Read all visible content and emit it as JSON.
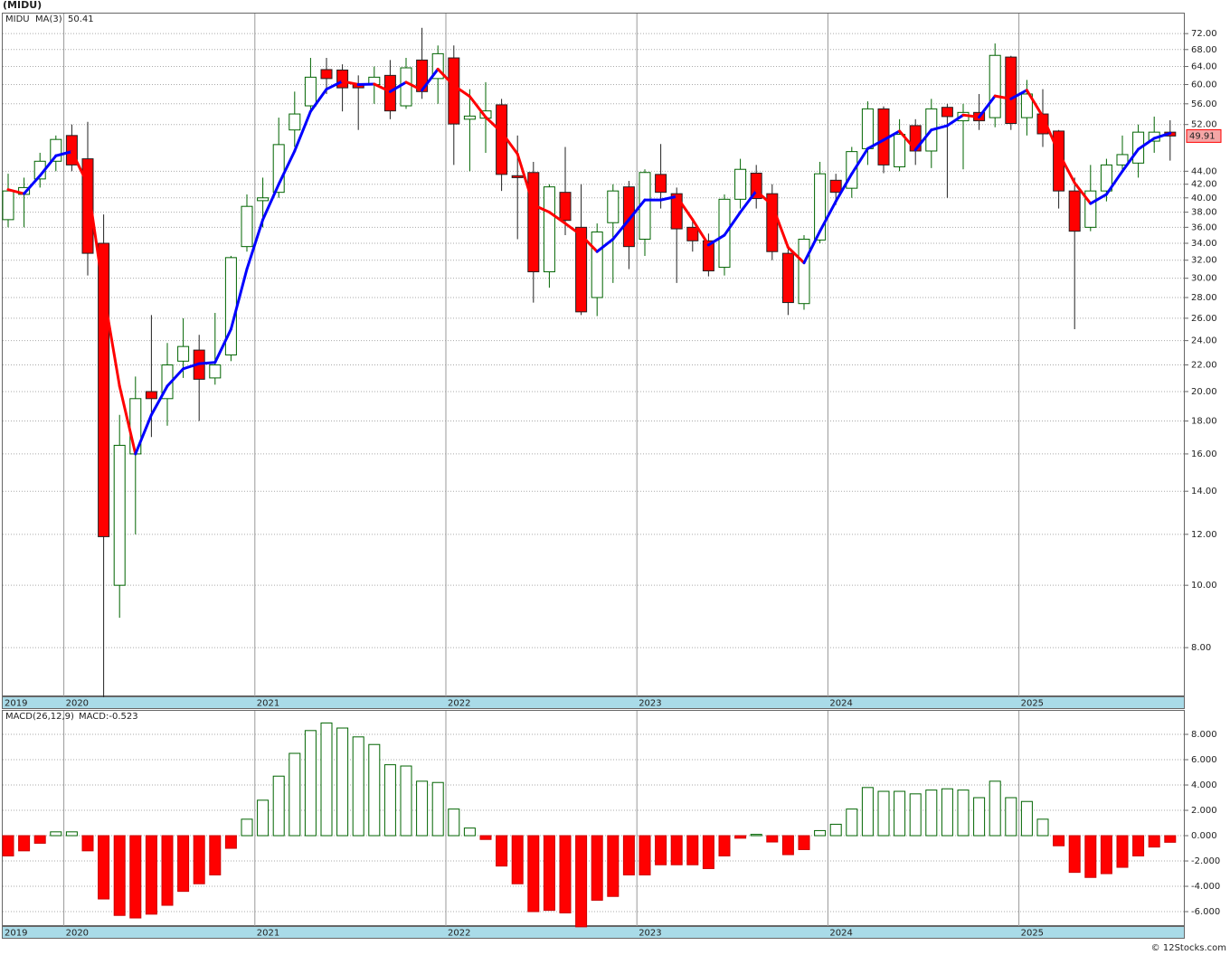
{
  "chart_data": [
    {
      "type": "candlestick",
      "title": "(MIDU)",
      "log_scale": true,
      "grid": true,
      "categories": [
        "2019",
        null,
        null,
        null,
        "2020",
        null,
        null,
        null,
        null,
        null,
        null,
        null,
        null,
        null,
        null,
        null,
        "2021",
        null,
        null,
        null,
        null,
        null,
        null,
        null,
        null,
        null,
        null,
        null,
        "2022",
        null,
        null,
        null,
        null,
        null,
        null,
        null,
        null,
        null,
        null,
        null,
        "2023",
        null,
        null,
        null,
        null,
        null,
        null,
        null,
        null,
        null,
        null,
        null,
        "2024",
        null,
        null,
        null,
        null,
        null,
        null,
        null,
        null,
        null,
        null,
        null,
        "2025",
        null,
        null,
        null,
        null,
        null,
        null,
        null,
        null,
        null
      ],
      "ylim": [
        6.72,
        77.6
      ],
      "yticks": [
        {
          "value": 72,
          "label": "72.00"
        },
        {
          "value": 68,
          "label": "68.00"
        },
        {
          "value": 64,
          "label": "64.00"
        },
        {
          "value": 60,
          "label": "60.00"
        },
        {
          "value": 56,
          "label": "56.00"
        },
        {
          "value": 52,
          "label": "52.00"
        },
        {
          "value": 44,
          "label": "44.00"
        },
        {
          "value": 42,
          "label": "42.00"
        },
        {
          "value": 40,
          "label": "40.00"
        },
        {
          "value": 38,
          "label": "38.00"
        },
        {
          "value": 36,
          "label": "36.00"
        },
        {
          "value": 34,
          "label": "34.00"
        },
        {
          "value": 32,
          "label": "32.00"
        },
        {
          "value": 30,
          "label": "30.00"
        },
        {
          "value": 28,
          "label": "28.00"
        },
        {
          "value": 26,
          "label": "26.00"
        },
        {
          "value": 24,
          "label": "24.00"
        },
        {
          "value": 22,
          "label": "22.00"
        },
        {
          "value": 20,
          "label": "20.00"
        },
        {
          "value": 18,
          "label": "18.00"
        },
        {
          "value": 16,
          "label": "16.00"
        },
        {
          "value": 14,
          "label": "14.00"
        },
        {
          "value": 12,
          "label": "12.00"
        },
        {
          "value": 10,
          "label": "10.00"
        },
        {
          "value": 8,
          "label": "8.00"
        }
      ],
      "series": [
        {
          "name": "MIDU",
          "color": "#008000",
          "up_color": "#ffffff",
          "up_edge": "#006400",
          "down_color": "#ff0000",
          "down_edge": "#222222",
          "tag_color": "#f4a6a6",
          "open": [
            37,
            40.5,
            42.8,
            45.6,
            50,
            46,
            34,
            10,
            16,
            20,
            19.5,
            22.3,
            23.2,
            21,
            22.8,
            33.6,
            39.6,
            40.8,
            51,
            55.6,
            63.3,
            63.2,
            60.2,
            60,
            62,
            55.6,
            65.5,
            61.3,
            66,
            53,
            53.2,
            55.8,
            43.3,
            43.8,
            30.7,
            40.8,
            36,
            28,
            36.6,
            41.6,
            34.5,
            43.5,
            40.6,
            36,
            34.3,
            31.2,
            39.8,
            43.7,
            40.6,
            32.8,
            27.4,
            34.4,
            42.6,
            41.4,
            47.7,
            55,
            44.7,
            51.8,
            47.3,
            55.3,
            52.7,
            54.3,
            53.3,
            66.2,
            53.3,
            54,
            50.8,
            41,
            36,
            41,
            45,
            45.3,
            49,
            50.6
          ],
          "high": [
            43.6,
            43,
            47,
            50,
            52,
            52.5,
            37.7,
            18.4,
            21.1,
            26.3,
            23.8,
            26,
            24.5,
            26.5,
            32.5,
            40.5,
            43,
            53.3,
            58.5,
            66,
            66,
            64.5,
            62,
            64,
            65.5,
            66,
            73.5,
            69,
            69,
            59,
            60.5,
            57,
            50,
            45.5,
            42,
            48,
            42,
            36.5,
            42,
            42.5,
            44.3,
            48.5,
            41.5,
            37,
            35.2,
            40.5,
            46,
            45,
            42,
            33.3,
            35,
            45.5,
            43.6,
            48,
            56.5,
            55.5,
            53,
            53,
            57,
            56,
            56,
            58,
            69.5,
            66.5,
            61,
            59,
            51,
            43,
            45,
            46,
            50,
            52,
            53.5,
            52.8
          ],
          "low": [
            36,
            36,
            41.5,
            44,
            44,
            30.3,
            6.7,
            8.9,
            12,
            17,
            17.7,
            21,
            18,
            20.5,
            22.3,
            33,
            36,
            40,
            48,
            54,
            58,
            54.5,
            51,
            56,
            53,
            55,
            57,
            56,
            45,
            44,
            47,
            41,
            34.5,
            27.5,
            29,
            35,
            26.3,
            26.2,
            29.5,
            31,
            32.5,
            38.5,
            29.5,
            33,
            30.2,
            30.3,
            38.5,
            38.5,
            32,
            26.3,
            26.8,
            34,
            39,
            40,
            45,
            43.7,
            44,
            45,
            44.5,
            40,
            44.3,
            51,
            51.5,
            51,
            50,
            48,
            38.5,
            25,
            35.5,
            39.5,
            44,
            43,
            47,
            45.7
          ],
          "close": [
            41,
            41.5,
            45.6,
            49.3,
            45,
            32.8,
            11.9,
            16.5,
            19.5,
            19.5,
            22,
            23.5,
            20.9,
            22,
            32.3,
            38.8,
            40,
            48.4,
            54,
            61.6,
            61.3,
            59.3,
            59.3,
            61.6,
            54.6,
            63.7,
            58.5,
            67,
            52.1,
            53.6,
            54.6,
            43.5,
            43,
            30.7,
            41.6,
            36.9,
            26.6,
            35.4,
            41,
            33.6,
            43.8,
            40.8,
            35.8,
            34.3,
            30.8,
            39.8,
            44.3,
            39.9,
            33,
            27.5,
            34.5,
            43.6,
            40.8,
            47.2,
            55,
            45,
            50.2,
            47.3,
            55,
            53.5,
            54.3,
            52.7,
            66.6,
            52.2,
            58,
            50.3,
            41,
            35.5,
            41,
            45,
            46.7,
            50.6,
            50.6,
            49.91
          ]
        },
        {
          "name": "MA(3)",
          "color": "#0000ff",
          "color_falling": "#ff0000",
          "values": [
            41.2,
            40.6,
            43.3,
            46.5,
            47.2,
            42,
            28.5,
            20.4,
            16,
            18.4,
            20.4,
            21.7,
            22.1,
            22.2,
            25,
            31,
            37,
            42,
            47.3,
            54.5,
            59,
            60.7,
            60,
            60.1,
            58.5,
            60.5,
            58.8,
            63.4,
            59.8,
            57.5,
            53.4,
            50.6,
            46.8,
            39,
            38,
            36.5,
            35,
            33,
            34.5,
            37,
            39.7,
            39.7,
            40.2,
            37,
            33.8,
            35,
            38,
            41,
            39,
            33.5,
            31.7,
            35.5,
            39.5,
            43.6,
            47.7,
            49.2,
            50.8,
            47.5,
            51,
            51.8,
            53.8,
            53.4,
            57.6,
            57,
            58.8,
            53.5,
            47,
            42.2,
            39.2,
            40.5,
            44,
            47.6,
            49.5,
            50.41
          ]
        }
      ]
    },
    {
      "type": "bar",
      "title": "MACD(26,12,9)",
      "value_prefix": "MACD:",
      "label_color": "#0000ff",
      "grid": true,
      "up_color": "#ffffff",
      "up_edge": "#006400",
      "down_color": "#ff0000",
      "down_edge": "#cc0000",
      "ylim": [
        -7.14,
        9.93
      ],
      "yticks": [
        {
          "value": 8,
          "label": "8.000"
        },
        {
          "value": 6,
          "label": "6.000"
        },
        {
          "value": 4,
          "label": "4.000"
        },
        {
          "value": 2,
          "label": "2.000"
        },
        {
          "value": 0,
          "label": "0.000"
        },
        {
          "value": -2,
          "label": "-2.000"
        },
        {
          "value": -4,
          "label": "-4.000"
        },
        {
          "value": -6,
          "label": "-6.000"
        }
      ],
      "values": [
        -1.6,
        -1.2,
        -0.6,
        0.3,
        0.3,
        -1.2,
        -5,
        -6.3,
        -6.5,
        -6.2,
        -5.5,
        -4.4,
        -3.8,
        -3.1,
        -1,
        1.3,
        2.8,
        4.7,
        6.5,
        8.3,
        8.9,
        8.5,
        7.8,
        7.2,
        5.6,
        5.5,
        4.3,
        4.2,
        2.1,
        0.6,
        -0.3,
        -2.4,
        -3.8,
        -6,
        -5.9,
        -6.1,
        -7.2,
        -5.1,
        -4.8,
        -3.1,
        -3.1,
        -2.3,
        -2.3,
        -2.3,
        -2.6,
        -1.6,
        -0.2,
        0.1,
        -0.5,
        -1.5,
        -1.1,
        0.4,
        0.9,
        2.1,
        3.8,
        3.5,
        3.5,
        3.3,
        3.6,
        3.7,
        3.6,
        3,
        4.3,
        3,
        2.7,
        1.3,
        -0.8,
        -2.9,
        -3.3,
        -3,
        -2.5,
        -1.6,
        -0.9,
        -0.523
      ]
    }
  ],
  "source": "© 12Stocks.com"
}
